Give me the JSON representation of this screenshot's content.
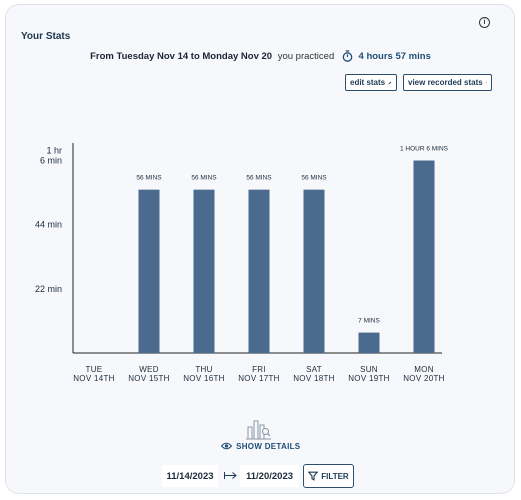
{
  "header": {
    "title": "Your Stats",
    "summary_range": "From Tuesday Nov 14 to Monday Nov 20",
    "summary_practiced": "you practiced",
    "summary_total": "4 hours 57 mins"
  },
  "buttons": {
    "edit_stats": "edit stats",
    "view_recorded_stats": "view recorded stats",
    "show_details": "SHOW DETAILS",
    "filter": "FILTER"
  },
  "date_filter": {
    "start": "11/14/2023",
    "end": "11/20/2023"
  },
  "colors": {
    "bar": "#4a6a8e",
    "accent": "#1f4e79"
  },
  "chart_data": {
    "type": "bar",
    "categories": [
      [
        "TUE",
        "NOV 14TH"
      ],
      [
        "WED",
        "NOV 15TH"
      ],
      [
        "THU",
        "NOV 16TH"
      ],
      [
        "FRI",
        "NOV 17TH"
      ],
      [
        "SAT",
        "NOV 18TH"
      ],
      [
        "SUN",
        "NOV 19TH"
      ],
      [
        "MON",
        "NOV 20TH"
      ]
    ],
    "values": [
      0,
      56,
      56,
      56,
      56,
      7,
      66
    ],
    "data_labels": [
      "",
      "56 MINS",
      "56 MINS",
      "56 MINS",
      "56 MINS",
      "7 MINS",
      "1 HOUR 6 MINS"
    ],
    "y_ticks": [
      {
        "value": 22,
        "label": [
          "22 min"
        ]
      },
      {
        "value": 44,
        "label": [
          "44 min"
        ]
      },
      {
        "value": 66,
        "label": [
          "1 hr",
          "6 min"
        ]
      }
    ],
    "ylim": [
      0,
      72
    ],
    "grid": false
  }
}
